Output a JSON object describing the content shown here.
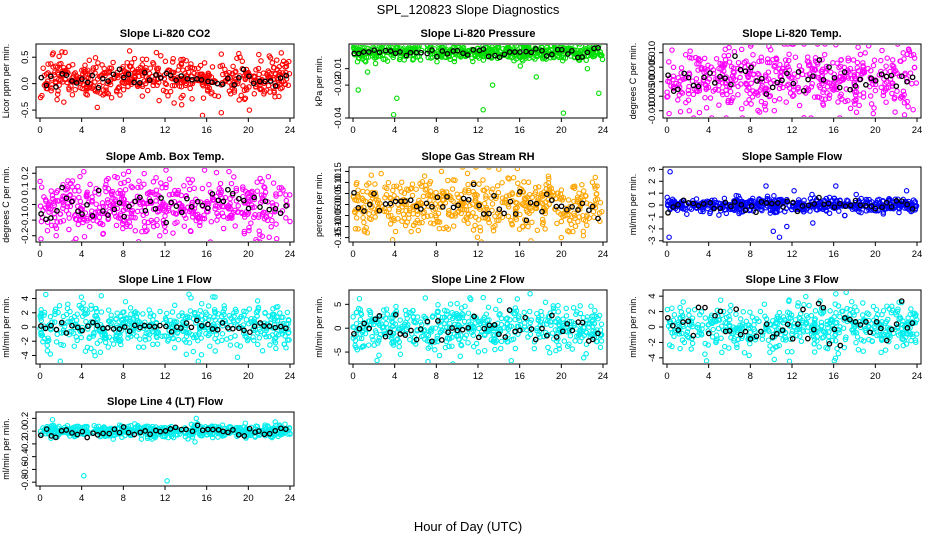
{
  "figure": {
    "title": "SPL_120823  Slope Diagnostics",
    "xlabel": "Hour of Day (UTC)"
  },
  "chart_data": [
    {
      "id": "co2",
      "type": "scatter",
      "title": "Slope Li-820 CO2",
      "ylabel": "Licor ppm per min.",
      "xlim": [
        0,
        24
      ],
      "x_ticks": [
        "0",
        "4",
        "8",
        "12",
        "16",
        "20",
        "24"
      ],
      "ylim": [
        -0.65,
        0.75
      ],
      "y_ticks": [
        "-0.5",
        "0.0",
        "0.5"
      ],
      "color": "#ff0000",
      "center": 0.1,
      "spread": 0.18,
      "ref_center": 0.1,
      "ref_spread": 0.08,
      "outliers": [
        [
          1.2,
          0.55
        ],
        [
          2.1,
          0.6
        ],
        [
          5.5,
          -0.45
        ],
        [
          8.6,
          0.62
        ],
        [
          13.6,
          -0.4
        ],
        [
          15.6,
          -0.6
        ],
        [
          17.4,
          -0.55
        ],
        [
          19.2,
          0.5
        ],
        [
          20.1,
          -0.5
        ],
        [
          21,
          0.55
        ]
      ]
    },
    {
      "id": "pressure",
      "type": "scatter",
      "title": "Slope Li-820 Pressure",
      "ylabel": "kPa per min.",
      "xlim": [
        0,
        24
      ],
      "x_ticks": [
        "0",
        "4",
        "8",
        "12",
        "16",
        "20",
        "24"
      ],
      "ylim": [
        -0.04,
        0.005
      ],
      "y_ticks": [
        "-0.04",
        "-0.02",
        "-0.01"
      ],
      "color": "#00dd00",
      "center": 0.0,
      "spread": 0.0025,
      "ref_center": 0.0,
      "ref_spread": 0.0015,
      "outliers": [
        [
          0.5,
          -0.023
        ],
        [
          1.4,
          -0.012
        ],
        [
          3.9,
          -0.038
        ],
        [
          4.2,
          -0.028
        ],
        [
          12.5,
          -0.035
        ],
        [
          13.4,
          -0.02
        ],
        [
          17.6,
          -0.015
        ],
        [
          20.2,
          -0.037
        ],
        [
          23.6,
          -0.025
        ],
        [
          22.5,
          -0.01
        ]
      ]
    },
    {
      "id": "temp",
      "type": "scatter",
      "title": "Slope Li-820 Temp.",
      "ylabel": "degrees C per min.",
      "xlim": [
        0,
        24
      ],
      "x_ticks": [
        "0",
        "4",
        "8",
        "12",
        "16",
        "20",
        "24"
      ],
      "ylim": [
        -0.0125,
        0.013
      ],
      "y_ticks": [
        "-0.010",
        "-0.005",
        "0.000",
        "0.005",
        "0.010"
      ],
      "color": "#ff00ff",
      "center": 0.0005,
      "spread": 0.006,
      "ref_center": 0.0,
      "ref_spread": 0.003,
      "outliers": [
        [
          0.2,
          -0.011
        ],
        [
          3.8,
          -0.009
        ],
        [
          10.3,
          -0.01
        ],
        [
          19.8,
          -0.011
        ],
        [
          23.2,
          0.011
        ]
      ]
    },
    {
      "id": "ambbox",
      "type": "scatter",
      "title": "Slope Amb. Box Temp.",
      "ylabel": "degrees C per min.",
      "xlim": [
        0,
        24
      ],
      "x_ticks": [
        "0",
        "4",
        "8",
        "12",
        "16",
        "20",
        "24"
      ],
      "ylim": [
        -0.24,
        0.24
      ],
      "y_ticks": [
        "-0.2",
        "-0.1",
        "0.0",
        "0.1",
        "0.2"
      ],
      "color": "#ff00ff",
      "center": 0.0,
      "spread": 0.09,
      "ref_center": 0.0,
      "ref_spread": 0.06,
      "outliers": [
        [
          0.1,
          -0.22
        ],
        [
          4.2,
          0.21
        ],
        [
          11.5,
          -0.2
        ],
        [
          15.8,
          0.22
        ],
        [
          22,
          -0.21
        ]
      ]
    },
    {
      "id": "rh",
      "type": "scatter",
      "title": "Slope Gas Stream RH",
      "ylabel": "percent per min.",
      "xlim": [
        0,
        24
      ],
      "x_ticks": [
        "0",
        "4",
        "8",
        "12",
        "16",
        "20",
        "24"
      ],
      "ylim": [
        -0.17,
        0.17
      ],
      "y_ticks": [
        "-0.15",
        "-0.10",
        "-0.05",
        "0.00",
        "0.05",
        "0.10",
        "0.15"
      ],
      "color": "#ffa500",
      "center": 0.0,
      "spread": 0.065,
      "ref_center": 0.0,
      "ref_spread": 0.04,
      "outliers": [
        [
          3.8,
          -0.16
        ],
        [
          8.5,
          0.15
        ],
        [
          14,
          0.16
        ],
        [
          20,
          -0.15
        ]
      ]
    },
    {
      "id": "sampleflow",
      "type": "scatter",
      "title": "Slope Sample Flow",
      "ylabel": "ml/min per min.",
      "xlim": [
        0,
        24
      ],
      "x_ticks": [
        "0",
        "4",
        "8",
        "12",
        "16",
        "20",
        "24"
      ],
      "ylim": [
        -3.1,
        3.2
      ],
      "y_ticks": [
        "-3",
        "-2",
        "-1",
        "0",
        "1",
        "2",
        "3"
      ],
      "color": "#0000ff",
      "center": 0.0,
      "spread": 0.3,
      "ref_center": 0.0,
      "ref_spread": 0.25,
      "outliers": [
        [
          0.3,
          2.8
        ],
        [
          0.2,
          -2.7
        ],
        [
          10.8,
          -2.7
        ],
        [
          10.2,
          -2.2
        ],
        [
          9.5,
          1.6
        ],
        [
          11.5,
          -1.8
        ],
        [
          12.2,
          1.2
        ],
        [
          14,
          -1.5
        ],
        [
          16.2,
          1.6
        ],
        [
          23,
          1.2
        ]
      ]
    },
    {
      "id": "line1",
      "type": "scatter",
      "title": "Slope Line 1 Flow",
      "ylabel": "ml/min per min.",
      "xlim": [
        0,
        24
      ],
      "x_ticks": [
        "0",
        "4",
        "8",
        "12",
        "16",
        "20",
        "24"
      ],
      "ylim": [
        -5.2,
        5.2
      ],
      "y_ticks": [
        "-4",
        "-2",
        "0",
        "2",
        "4"
      ],
      "color": "#00eeee",
      "center": 0.0,
      "spread": 1.6,
      "ref_center": 0.0,
      "ref_spread": 0.3,
      "outliers": [
        [
          1,
          -3.8
        ],
        [
          14.3,
          4.6
        ],
        [
          15.2,
          -4.8
        ],
        [
          16.8,
          4.2
        ]
      ]
    },
    {
      "id": "line2",
      "type": "scatter",
      "title": "Slope Line 2 Flow",
      "ylabel": "ml/min per min.",
      "xlim": [
        0,
        24
      ],
      "x_ticks": [
        "0",
        "4",
        "8",
        "12",
        "16",
        "20",
        "24"
      ],
      "ylim": [
        -7.5,
        8
      ],
      "y_ticks": [
        "-5",
        "0",
        "5"
      ],
      "color": "#00eeee",
      "center": 0.0,
      "spread": 2.3,
      "ref_center": 0.0,
      "ref_spread": 1.6,
      "outliers": [
        [
          17,
          7.2
        ],
        [
          15.2,
          -6.8
        ],
        [
          7.2,
          -7
        ],
        [
          12.5,
          6.4
        ]
      ]
    },
    {
      "id": "line3",
      "type": "scatter",
      "title": "Slope Line 3 Flow",
      "ylabel": "ml/min per min.",
      "xlim": [
        0,
        24
      ],
      "x_ticks": [
        "0",
        "4",
        "8",
        "12",
        "16",
        "20",
        "24"
      ],
      "ylim": [
        -4.8,
        4.8
      ],
      "y_ticks": [
        "-4",
        "-2",
        "0",
        "2",
        "4"
      ],
      "color": "#00eeee",
      "center": 0.0,
      "spread": 1.5,
      "ref_center": 0.0,
      "ref_spread": 1.2,
      "outliers": [
        [
          16.2,
          4.3
        ],
        [
          17.2,
          4.5
        ],
        [
          10.3,
          -4.2
        ],
        [
          3.8,
          -4.4
        ]
      ]
    },
    {
      "id": "line4",
      "type": "scatter",
      "title": "Slope Line 4 (LT) Flow",
      "ylabel": "ml/min per min.",
      "xlim": [
        0,
        24
      ],
      "x_ticks": [
        "0",
        "4",
        "8",
        "12",
        "16",
        "20",
        "24"
      ],
      "ylim": [
        -0.86,
        0.3
      ],
      "y_ticks": [
        "-0.8",
        "-0.6",
        "-0.4",
        "-0.2",
        "0.0",
        "0.2"
      ],
      "color": "#00eeee",
      "center": 0.0,
      "spread": 0.05,
      "ref_center": 0.0,
      "ref_spread": 0.05,
      "outliers": [
        [
          4.2,
          -0.7
        ],
        [
          12.2,
          -0.78
        ],
        [
          15,
          0.2
        ],
        [
          1.2,
          0.18
        ]
      ]
    }
  ]
}
